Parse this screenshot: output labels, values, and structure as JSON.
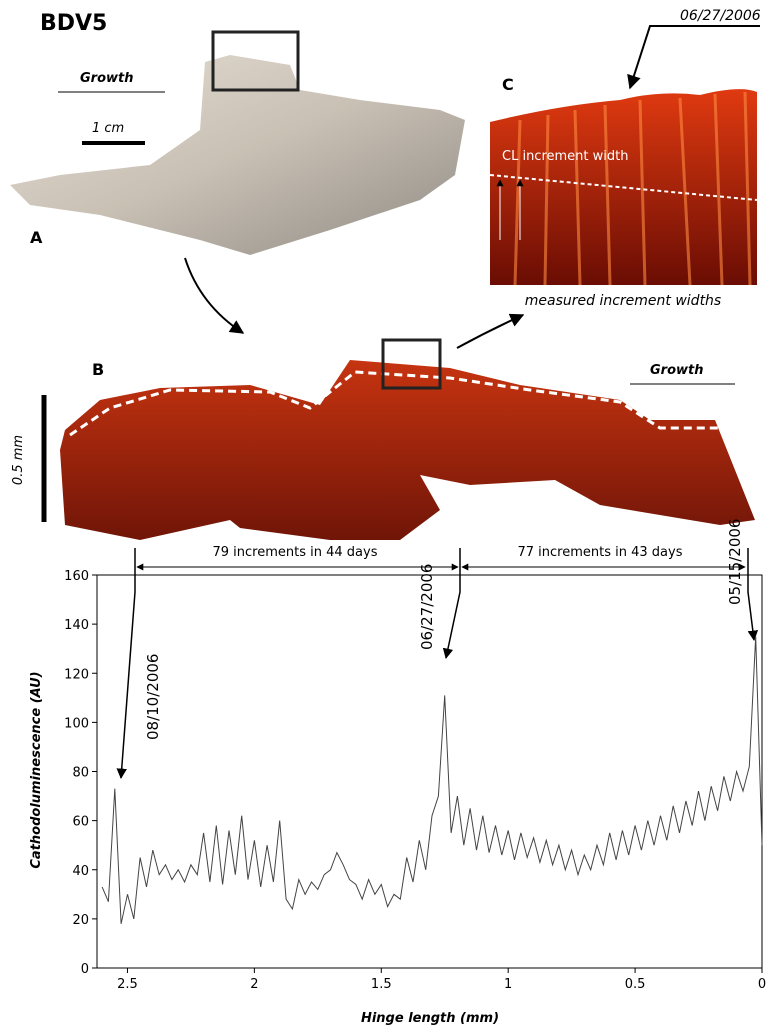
{
  "figure": {
    "label": "BDV5",
    "panel_a": {
      "letter": "A",
      "growth": "Growth",
      "scale": "1 cm"
    },
    "panel_b": {
      "letter": "B",
      "growth": "Growth",
      "scale": "0.5 mm"
    },
    "panel_c": {
      "letter": "C",
      "date": "06/27/2006",
      "inner_label": "CL increment width",
      "caption": "measured increment widths"
    }
  },
  "chart_data": {
    "type": "line",
    "x_label": "Hinge length (mm)",
    "y_label": "Cathodoluminescence (AU)",
    "annotations": [
      "79 increments in 44 days",
      "77 increments in 43 days",
      "08/10/2006",
      "06/27/2006",
      "05/15/2006"
    ],
    "x": [
      2.6,
      2.575,
      2.55,
      2.525,
      2.5,
      2.475,
      2.45,
      2.425,
      2.4,
      2.375,
      2.35,
      2.325,
      2.3,
      2.275,
      2.25,
      2.225,
      2.2,
      2.175,
      2.15,
      2.125,
      2.1,
      2.075,
      2.05,
      2.025,
      2.0,
      1.975,
      1.95,
      1.925,
      1.9,
      1.875,
      1.85,
      1.825,
      1.8,
      1.775,
      1.75,
      1.725,
      1.7,
      1.675,
      1.65,
      1.625,
      1.6,
      1.575,
      1.55,
      1.525,
      1.5,
      1.475,
      1.45,
      1.425,
      1.4,
      1.375,
      1.35,
      1.325,
      1.3,
      1.275,
      1.25,
      1.225,
      1.2,
      1.175,
      1.15,
      1.125,
      1.1,
      1.075,
      1.05,
      1.025,
      1.0,
      0.975,
      0.95,
      0.925,
      0.9,
      0.875,
      0.85,
      0.825,
      0.8,
      0.775,
      0.75,
      0.725,
      0.7,
      0.675,
      0.65,
      0.625,
      0.6,
      0.575,
      0.55,
      0.525,
      0.5,
      0.475,
      0.45,
      0.425,
      0.4,
      0.375,
      0.35,
      0.325,
      0.3,
      0.275,
      0.25,
      0.225,
      0.2,
      0.175,
      0.15,
      0.125,
      0.1,
      0.075,
      0.05,
      0.025,
      0.0
    ],
    "series": [
      {
        "color": "#444444",
        "values": [
          33,
          27,
          73,
          18,
          30,
          20,
          45,
          33,
          48,
          38,
          42,
          36,
          40,
          35,
          42,
          38,
          55,
          35,
          58,
          34,
          56,
          38,
          62,
          36,
          52,
          33,
          50,
          35,
          60,
          28,
          24,
          36,
          30,
          35,
          32,
          38,
          40,
          47,
          42,
          36,
          34,
          28,
          36,
          30,
          34,
          25,
          30,
          28,
          45,
          35,
          52,
          40,
          62,
          70,
          111,
          55,
          70,
          50,
          65,
          48,
          62,
          47,
          58,
          46,
          56,
          44,
          55,
          45,
          53,
          43,
          52,
          42,
          50,
          40,
          48,
          38,
          46,
          40,
          50,
          42,
          55,
          44,
          56,
          46,
          58,
          48,
          60,
          50,
          62,
          52,
          66,
          55,
          68,
          58,
          72,
          60,
          74,
          64,
          78,
          68,
          80,
          72,
          82,
          135,
          50
        ]
      }
    ],
    "xlim": [
      2.62,
      0
    ],
    "xticks": [
      2.5,
      2,
      1.5,
      1,
      0.5,
      0
    ],
    "ylim": [
      0,
      160
    ],
    "yticks": [
      0,
      20,
      40,
      60,
      80,
      100,
      120,
      140,
      160
    ]
  }
}
